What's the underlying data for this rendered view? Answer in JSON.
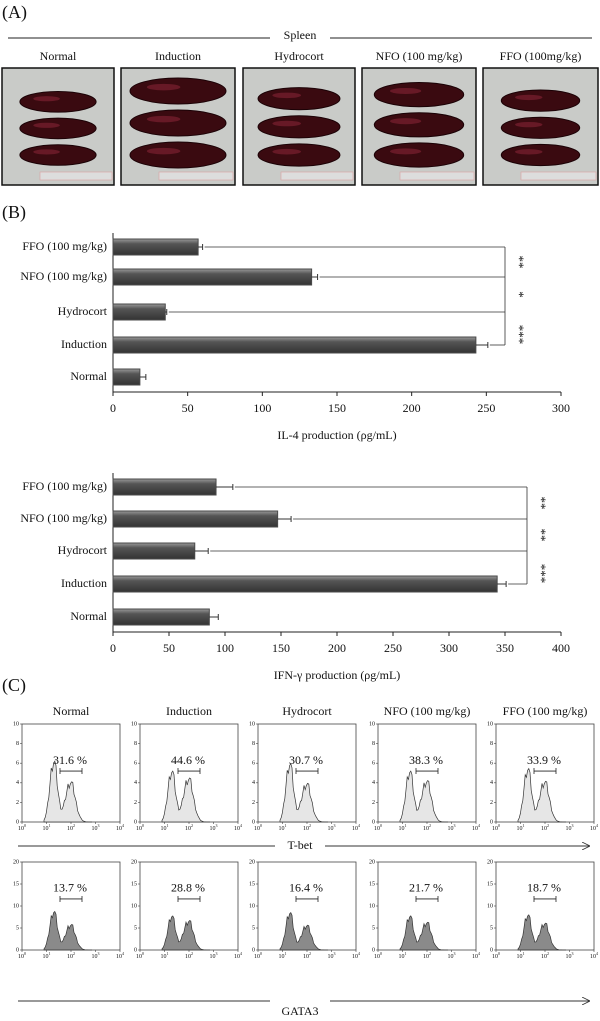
{
  "panels": {
    "a": "(A)",
    "b": "(B)",
    "c": "(C)"
  },
  "spleen": {
    "group_label": "Spleen",
    "samples": [
      "Normal",
      "Induction",
      "Hydrocort",
      "NFO (100 mg/kg)",
      "FFO (100mg/kg)"
    ]
  },
  "chart_data": [
    {
      "type": "hbar",
      "categories": [
        "FFO (100 mg/kg)",
        "NFO (100 mg/kg)",
        "Hydrocort",
        "Induction",
        "Normal"
      ],
      "values": [
        57,
        133,
        35,
        243,
        18
      ],
      "errors": [
        3,
        4,
        1,
        8,
        4
      ],
      "color": "#4a4a4a",
      "xlim": [
        0,
        300
      ],
      "xticks": [
        0,
        50,
        100,
        150,
        200,
        250,
        300
      ],
      "x_label": "IL-4 production (ρg/mL)",
      "annotations": [
        "**",
        "*",
        "***"
      ]
    },
    {
      "type": "hbar",
      "categories": [
        "FFO (100 mg/kg)",
        "NFO (100 mg/kg)",
        "Hydrocort",
        "Induction",
        "Normal"
      ],
      "values": [
        92,
        147,
        73,
        343,
        86
      ],
      "errors": [
        15,
        12,
        12,
        8,
        8
      ],
      "color": "#4a4a4a",
      "xlim": [
        0,
        400
      ],
      "xticks": [
        0,
        50,
        100,
        150,
        200,
        250,
        300,
        350,
        400
      ],
      "x_label": "IFN-γ production (ρg/mL)",
      "annotations": [
        "**",
        "**",
        "***"
      ]
    }
  ],
  "flow": {
    "samples": [
      "Normal",
      "Induction",
      "Hydrocort",
      "NFO (100 mg/kg)",
      "FFO (100 mg/kg)"
    ],
    "tbet_label": "T-bet",
    "gata3_label": "GATA3",
    "tbet_percent": [
      "31.6 %",
      "44.6 %",
      "30.7 %",
      "38.3 %",
      "33.9 %"
    ],
    "gata3_percent": [
      "13.7 %",
      "28.8 %",
      "16.4 %",
      "21.7 %",
      "18.7 %"
    ],
    "x_tick_base": "10",
    "x_tick_exponents": [
      "0",
      "1",
      "2",
      "3",
      "4"
    ],
    "tbet_yticks": [
      0,
      2,
      4,
      6,
      8,
      10
    ],
    "gata3_yticks": [
      0,
      5,
      10,
      15,
      20
    ]
  }
}
